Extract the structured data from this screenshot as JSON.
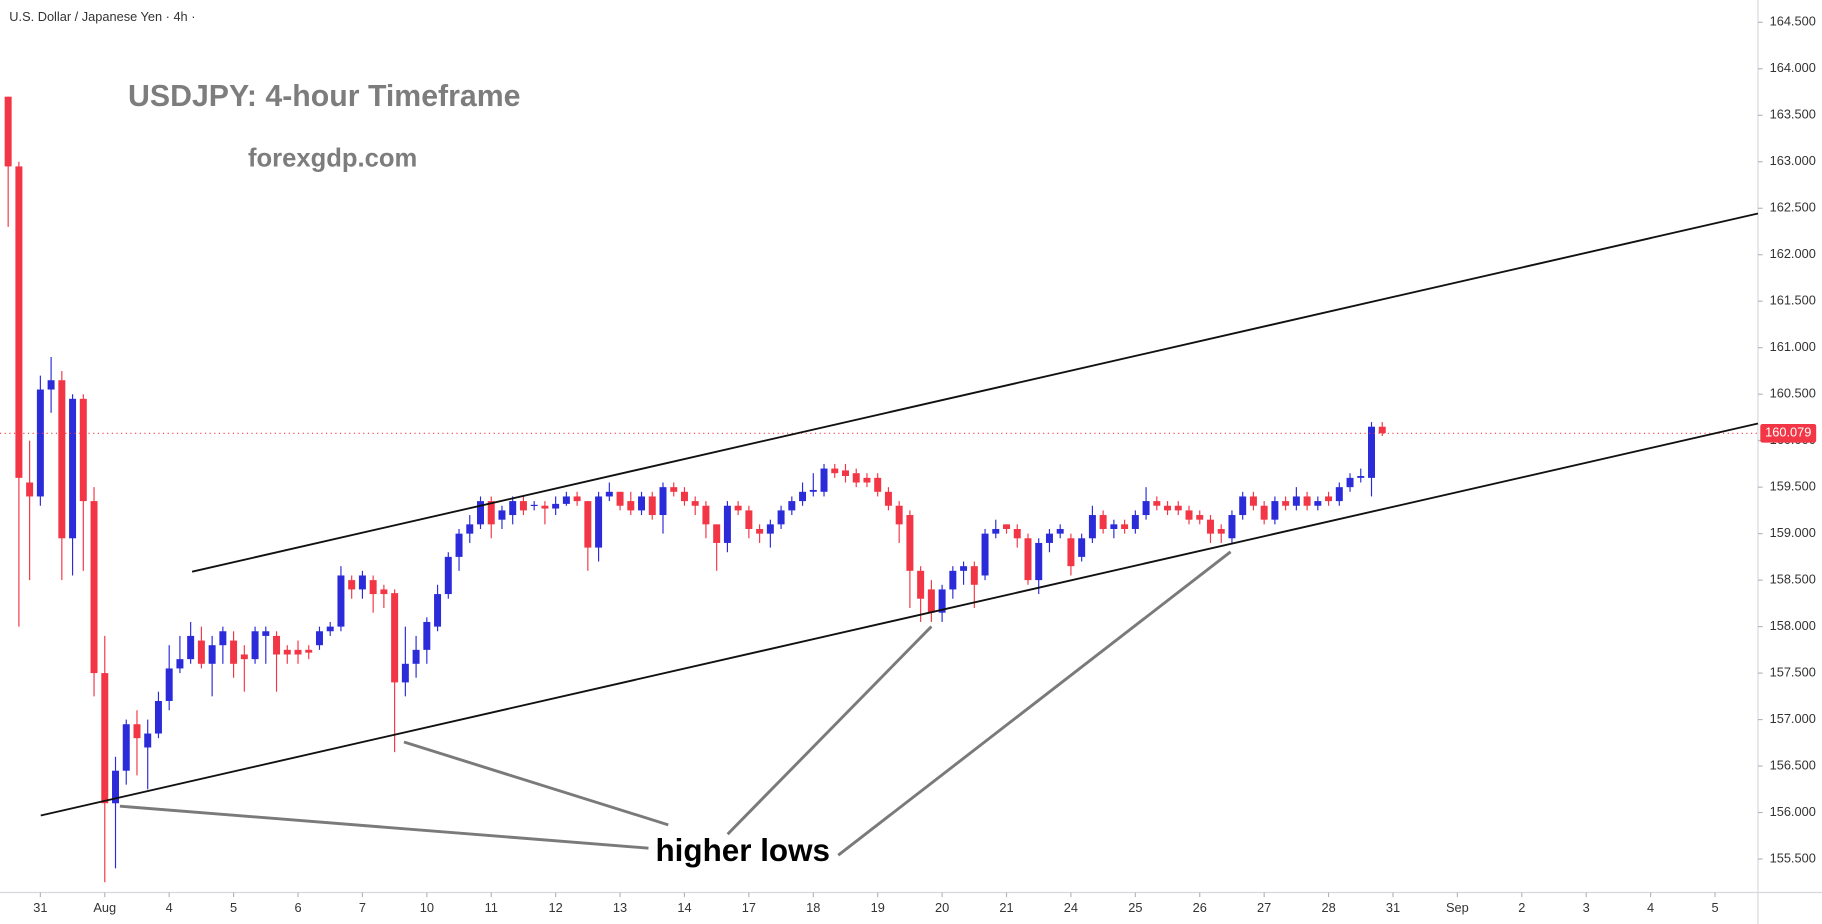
{
  "chart_data": {
    "type": "candlestick",
    "header": "U.S. Dollar / Japanese Yen · 4h ·",
    "title": "USDJPY: 4-hour Timeframe",
    "subtitle": "forexgdp.com",
    "annotation": "higher lows",
    "up_color": "#2b2bd9",
    "down_color": "#f23645",
    "xlim": [
      -0.76,
      163
    ],
    "xticks": [
      {
        "value": 3,
        "label": "31"
      },
      {
        "value": 9,
        "label": "Aug"
      },
      {
        "value": 15,
        "label": "4"
      },
      {
        "value": 21,
        "label": "5"
      },
      {
        "value": 27,
        "label": "6"
      },
      {
        "value": 33,
        "label": "7"
      },
      {
        "value": 39,
        "label": "10"
      },
      {
        "value": 45,
        "label": "11"
      },
      {
        "value": 51,
        "label": "12"
      },
      {
        "value": 57,
        "label": "13"
      },
      {
        "value": 63,
        "label": "14"
      },
      {
        "value": 69,
        "label": "17"
      },
      {
        "value": 75,
        "label": "18"
      },
      {
        "value": 81,
        "label": "19"
      },
      {
        "value": 87,
        "label": "20"
      },
      {
        "value": 93,
        "label": "21"
      },
      {
        "value": 99,
        "label": "24"
      },
      {
        "value": 105,
        "label": "25"
      },
      {
        "value": 111,
        "label": "26"
      },
      {
        "value": 117,
        "label": "27"
      },
      {
        "value": 123,
        "label": "28"
      },
      {
        "value": 129,
        "label": "31"
      },
      {
        "value": 135,
        "label": "Sep"
      },
      {
        "value": 141,
        "label": "2"
      },
      {
        "value": 147,
        "label": "3"
      },
      {
        "value": 153,
        "label": "4"
      },
      {
        "value": 159,
        "label": "5"
      }
    ],
    "ylim": [
      155.14,
      164.74
    ],
    "yticks": [
      {
        "value": 155.5,
        "label": "155.500"
      },
      {
        "value": 156,
        "label": "156.000"
      },
      {
        "value": 156.5,
        "label": "156.500"
      },
      {
        "value": 157,
        "label": "157.000"
      },
      {
        "value": 157.5,
        "label": "157.500"
      },
      {
        "value": 158,
        "label": "158.000"
      },
      {
        "value": 158.5,
        "label": "158.500"
      },
      {
        "value": 159,
        "label": "159.000"
      },
      {
        "value": 159.5,
        "label": "159.500"
      },
      {
        "value": 160,
        "label": "160.000"
      },
      {
        "value": 160.5,
        "label": "160.500"
      },
      {
        "value": 161,
        "label": "161.000"
      },
      {
        "value": 161.5,
        "label": "161.500"
      },
      {
        "value": 162,
        "label": "162.000"
      },
      {
        "value": 162.5,
        "label": "162.500"
      },
      {
        "value": 163,
        "label": "163.000"
      },
      {
        "value": 163.5,
        "label": "163.500"
      },
      {
        "value": 164,
        "label": "164.000"
      },
      {
        "value": 164.5,
        "label": "164.500"
      }
    ],
    "last_price": {
      "value": 160.079,
      "label": "160.079"
    },
    "ohlc": [
      [
        163.7,
        163.7,
        162.3,
        162.95
      ],
      [
        162.95,
        163.0,
        158.0,
        159.6
      ],
      [
        159.55,
        160.0,
        158.5,
        159.4
      ],
      [
        159.4,
        160.7,
        159.3,
        160.55
      ],
      [
        160.55,
        160.9,
        160.3,
        160.65
      ],
      [
        160.65,
        160.75,
        158.5,
        158.95
      ],
      [
        158.95,
        160.5,
        158.55,
        160.45
      ],
      [
        160.45,
        160.5,
        158.6,
        159.35
      ],
      [
        159.35,
        159.5,
        157.25,
        157.5
      ],
      [
        157.5,
        157.9,
        155.25,
        156.1
      ],
      [
        156.1,
        156.6,
        155.4,
        156.45
      ],
      [
        156.45,
        157.0,
        156.3,
        156.95
      ],
      [
        156.95,
        157.1,
        156.4,
        156.8
      ],
      [
        156.7,
        157.0,
        156.25,
        156.85
      ],
      [
        156.85,
        157.3,
        156.8,
        157.2
      ],
      [
        157.2,
        157.8,
        157.1,
        157.55
      ],
      [
        157.55,
        157.9,
        157.5,
        157.65
      ],
      [
        157.65,
        158.05,
        157.6,
        157.9
      ],
      [
        157.85,
        158.0,
        157.55,
        157.6
      ],
      [
        157.6,
        157.9,
        157.25,
        157.8
      ],
      [
        157.8,
        158.0,
        157.6,
        157.95
      ],
      [
        157.85,
        157.95,
        157.45,
        157.6
      ],
      [
        157.7,
        157.8,
        157.3,
        157.65
      ],
      [
        157.65,
        158.0,
        157.6,
        157.95
      ],
      [
        157.9,
        158.0,
        157.6,
        157.95
      ],
      [
        157.9,
        157.95,
        157.3,
        157.7
      ],
      [
        157.75,
        157.8,
        157.6,
        157.7
      ],
      [
        157.75,
        157.85,
        157.6,
        157.7
      ],
      [
        157.75,
        157.8,
        157.65,
        157.72
      ],
      [
        157.8,
        158.0,
        157.75,
        157.95
      ],
      [
        157.95,
        158.05,
        157.9,
        158.0
      ],
      [
        158.0,
        158.65,
        157.95,
        158.55
      ],
      [
        158.5,
        158.55,
        158.3,
        158.4
      ],
      [
        158.4,
        158.6,
        158.3,
        158.55
      ],
      [
        158.5,
        158.55,
        158.15,
        158.35
      ],
      [
        158.4,
        158.45,
        158.2,
        158.35
      ],
      [
        158.36,
        158.4,
        156.65,
        157.4
      ],
      [
        157.4,
        158.0,
        157.25,
        157.6
      ],
      [
        157.6,
        157.9,
        157.45,
        157.75
      ],
      [
        157.75,
        158.1,
        157.6,
        158.05
      ],
      [
        158.0,
        158.45,
        157.95,
        158.35
      ],
      [
        158.35,
        158.8,
        158.3,
        158.75
      ],
      [
        158.75,
        159.05,
        158.6,
        159.0
      ],
      [
        159.0,
        159.2,
        158.9,
        159.1
      ],
      [
        159.1,
        159.4,
        159.05,
        159.35
      ],
      [
        159.35,
        159.4,
        158.95,
        159.1
      ],
      [
        159.15,
        159.3,
        159.05,
        159.25
      ],
      [
        159.2,
        159.4,
        159.1,
        159.35
      ],
      [
        159.35,
        159.4,
        159.2,
        159.25
      ],
      [
        159.3,
        159.35,
        159.25,
        159.31
      ],
      [
        159.3,
        159.35,
        159.1,
        159.27
      ],
      [
        159.27,
        159.4,
        159.2,
        159.32
      ],
      [
        159.32,
        159.45,
        159.3,
        159.4
      ],
      [
        159.4,
        159.45,
        159.3,
        159.35
      ],
      [
        159.35,
        159.35,
        158.6,
        158.85
      ],
      [
        158.85,
        159.45,
        158.7,
        159.4
      ],
      [
        159.4,
        159.55,
        159.35,
        159.45
      ],
      [
        159.45,
        159.45,
        159.25,
        159.3
      ],
      [
        159.35,
        159.45,
        159.2,
        159.25
      ],
      [
        159.25,
        159.45,
        159.2,
        159.4
      ],
      [
        159.4,
        159.45,
        159.15,
        159.2
      ],
      [
        159.2,
        159.55,
        159.0,
        159.5
      ],
      [
        159.5,
        159.55,
        159.4,
        159.45
      ],
      [
        159.45,
        159.5,
        159.3,
        159.35
      ],
      [
        159.35,
        159.4,
        159.2,
        159.3
      ],
      [
        159.3,
        159.35,
        158.95,
        159.1
      ],
      [
        159.1,
        159.1,
        158.6,
        158.9
      ],
      [
        158.9,
        159.35,
        158.8,
        159.3
      ],
      [
        159.3,
        159.35,
        159.2,
        159.25
      ],
      [
        159.25,
        159.3,
        158.95,
        159.05
      ],
      [
        159.05,
        159.1,
        158.9,
        159.0
      ],
      [
        159.0,
        159.15,
        158.85,
        159.1
      ],
      [
        159.1,
        159.3,
        159.05,
        159.25
      ],
      [
        159.25,
        159.4,
        159.2,
        159.35
      ],
      [
        159.35,
        159.55,
        159.3,
        159.45
      ],
      [
        159.45,
        159.65,
        159.4,
        159.47
      ],
      [
        159.45,
        159.75,
        159.4,
        159.7
      ],
      [
        159.7,
        159.75,
        159.6,
        159.65
      ],
      [
        159.68,
        159.75,
        159.55,
        159.62
      ],
      [
        159.65,
        159.7,
        159.5,
        159.55
      ],
      [
        159.6,
        159.65,
        159.5,
        159.55
      ],
      [
        159.6,
        159.65,
        159.4,
        159.45
      ],
      [
        159.45,
        159.5,
        159.25,
        159.3
      ],
      [
        159.3,
        159.35,
        158.9,
        159.1
      ],
      [
        159.2,
        159.25,
        158.2,
        158.6
      ],
      [
        158.6,
        158.65,
        158.05,
        158.3
      ],
      [
        158.4,
        158.5,
        158.05,
        158.15
      ],
      [
        158.15,
        158.45,
        158.05,
        158.4
      ],
      [
        158.4,
        158.65,
        158.3,
        158.6
      ],
      [
        158.6,
        158.7,
        158.45,
        158.65
      ],
      [
        158.65,
        158.7,
        158.2,
        158.45
      ],
      [
        158.55,
        159.05,
        158.5,
        159.0
      ],
      [
        159.0,
        159.15,
        158.95,
        159.05
      ],
      [
        159.1,
        159.1,
        159.0,
        159.05
      ],
      [
        159.05,
        159.1,
        158.85,
        158.95
      ],
      [
        158.95,
        159.0,
        158.45,
        158.5
      ],
      [
        158.5,
        158.95,
        158.35,
        158.9
      ],
      [
        158.9,
        159.05,
        158.8,
        159.0
      ],
      [
        159.0,
        159.1,
        158.95,
        159.05
      ],
      [
        158.95,
        159.0,
        158.55,
        158.65
      ],
      [
        158.75,
        159.0,
        158.7,
        158.95
      ],
      [
        158.95,
        159.3,
        158.9,
        159.2
      ],
      [
        159.2,
        159.25,
        159.0,
        159.05
      ],
      [
        159.05,
        159.15,
        158.95,
        159.1
      ],
      [
        159.1,
        159.15,
        159.0,
        159.05
      ],
      [
        159.05,
        159.25,
        159.0,
        159.2
      ],
      [
        159.2,
        159.5,
        159.15,
        159.35
      ],
      [
        159.35,
        159.4,
        159.25,
        159.3
      ],
      [
        159.3,
        159.35,
        159.2,
        159.25
      ],
      [
        159.3,
        159.35,
        159.2,
        159.25
      ],
      [
        159.25,
        159.3,
        159.1,
        159.15
      ],
      [
        159.2,
        159.25,
        159.1,
        159.15
      ],
      [
        159.15,
        159.2,
        158.9,
        159.0
      ],
      [
        159.05,
        159.1,
        158.9,
        159.0
      ],
      [
        158.95,
        159.25,
        158.9,
        159.2
      ],
      [
        159.2,
        159.45,
        159.15,
        159.4
      ],
      [
        159.4,
        159.45,
        159.25,
        159.3
      ],
      [
        159.3,
        159.35,
        159.1,
        159.15
      ],
      [
        159.15,
        159.4,
        159.1,
        159.35
      ],
      [
        159.35,
        159.4,
        159.25,
        159.3
      ],
      [
        159.3,
        159.5,
        159.25,
        159.4
      ],
      [
        159.4,
        159.45,
        159.25,
        159.3
      ],
      [
        159.3,
        159.4,
        159.25,
        159.35
      ],
      [
        159.4,
        159.45,
        159.3,
        159.35
      ],
      [
        159.35,
        159.55,
        159.3,
        159.5
      ],
      [
        159.5,
        159.65,
        159.45,
        159.6
      ],
      [
        159.6,
        159.7,
        159.55,
        159.62
      ],
      [
        159.6,
        160.2,
        159.4,
        160.15
      ],
      [
        160.15,
        160.2,
        160.05,
        160.08
      ]
    ]
  }
}
